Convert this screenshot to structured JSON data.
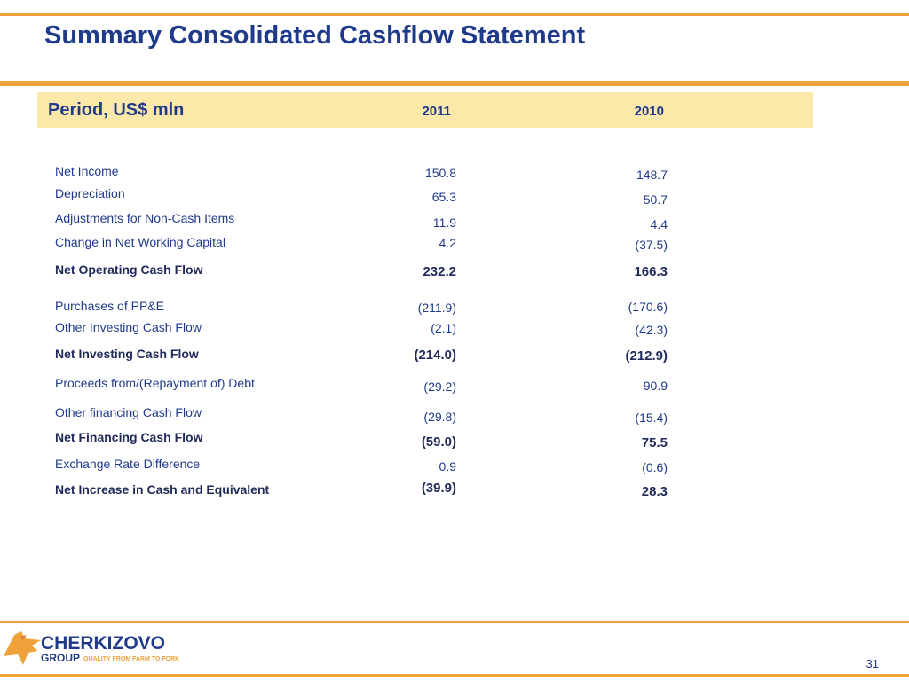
{
  "title": "Summary Consolidated Cashflow Statement",
  "header": {
    "label": "Period, US$ mln",
    "year_2011": "2011",
    "year_2010": "2010"
  },
  "rows": [
    {
      "label": "Net Income",
      "y2011": "150.8",
      "y2010": "148.7",
      "bold": false
    },
    {
      "label": "Depreciation",
      "y2011": "65.3",
      "y2010": "50.7",
      "bold": false
    },
    {
      "label": "Adjustments for Non-Cash Items",
      "y2011": "11.9",
      "y2010": "4.4",
      "bold": false
    },
    {
      "label": "Change in Net Working Capital",
      "y2011": "4.2",
      "y2010": "(37.5)",
      "bold": false
    },
    {
      "label": "Net Operating Cash Flow",
      "y2011": "232.2",
      "y2010": "166.3",
      "bold": true
    },
    {
      "label": "Purchases of PP&E",
      "y2011": "(211.9)",
      "y2010": "(170.6)",
      "bold": false
    },
    {
      "label": "Other Investing Cash Flow",
      "y2011": "(2.1)",
      "y2010": "(42.3)",
      "bold": false
    },
    {
      "label": "Net Investing Cash Flow",
      "y2011": "(214.0)",
      "y2010": "(212.9)",
      "bold": true
    },
    {
      "label": "Proceeds from/(Repayment of) Debt",
      "y2011": "(29.2)",
      "y2010": "90.9",
      "bold": false
    },
    {
      "label": "Other financing Cash Flow",
      "y2011": "(29.8)",
      "y2010": "(15.4)",
      "bold": false
    },
    {
      "label": "Net Financing Cash Flow",
      "y2011": "(59.0)",
      "y2010": "75.5",
      "bold": true
    },
    {
      "label": "Exchange Rate Difference",
      "y2011": "0.9",
      "y2010": "(0.6)",
      "bold": false
    },
    {
      "label": "Net Increase in Cash and Equivalent",
      "y2011": "(39.9)",
      "y2010": "28.3",
      "bold": true
    }
  ],
  "logo": {
    "name": "CHERKIZOVO",
    "group": "GROUP",
    "tagline": "QUALITY FROM FARM TO FORK"
  },
  "page_number": "31",
  "colors": {
    "accent": "#f0a23a",
    "title": "#1f3a8a",
    "header_band": "#fce8a8",
    "text_dark": "#1f2a5a"
  }
}
